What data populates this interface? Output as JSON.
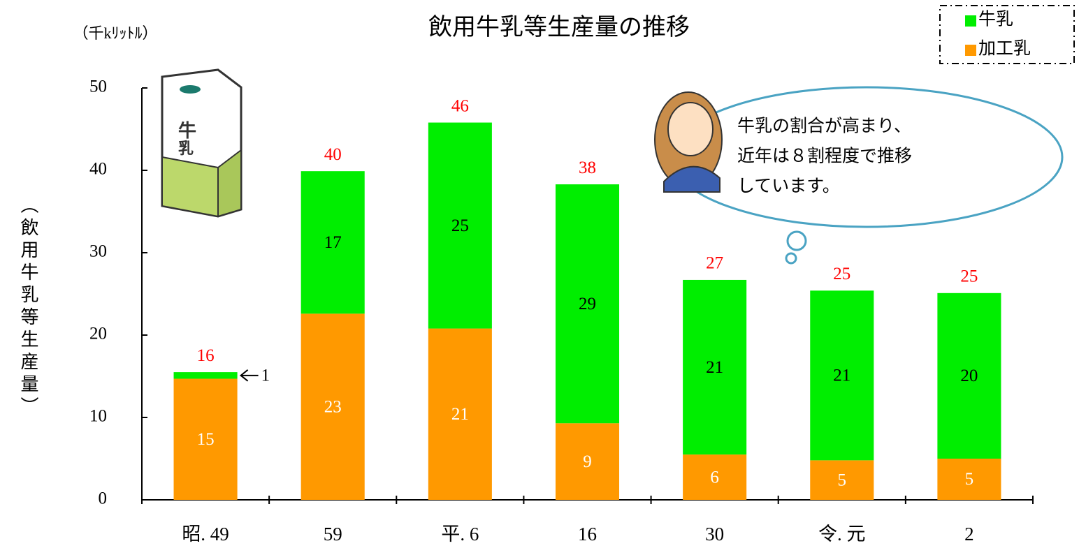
{
  "chart_data": {
    "type": "stacked_bar",
    "title": "飲用牛乳等生産量の推移",
    "unit_label": "（千kﾘｯﾄﾙ）",
    "y_label": "（飲用牛乳等生産量）",
    "categories": [
      "昭. 49",
      "59",
      "平. 6",
      "16",
      "30",
      "令. 元",
      "2"
    ],
    "series": [
      {
        "name": "加工乳",
        "color": "#ff9900",
        "label_color": "#ffffff",
        "values": [
          14.7,
          22.6,
          20.8,
          9.3,
          5.5,
          4.8,
          5.0
        ],
        "value_labels": [
          "15",
          "23",
          "21",
          "9",
          "6",
          "5",
          "5"
        ]
      },
      {
        "name": "牛乳",
        "color": "#00ee00",
        "label_color": "#000000",
        "values": [
          0.8,
          17.3,
          25.0,
          29.0,
          21.2,
          20.6,
          20.1
        ],
        "value_labels": [
          "1",
          "17",
          "25",
          "29",
          "21",
          "21",
          "20"
        ]
      }
    ],
    "total_labels": [
      "16",
      "40",
      "46",
      "38",
      "27",
      "25",
      "25"
    ],
    "total_color": "#ff0000",
    "ylim": [
      0,
      50
    ],
    "yticks": [
      0,
      10,
      20,
      30,
      40,
      50
    ],
    "grid": false,
    "legend": "top-right",
    "annotation": [
      "牛乳の割合が高まり、",
      "近年は８割程度で推移",
      "しています。"
    ]
  }
}
